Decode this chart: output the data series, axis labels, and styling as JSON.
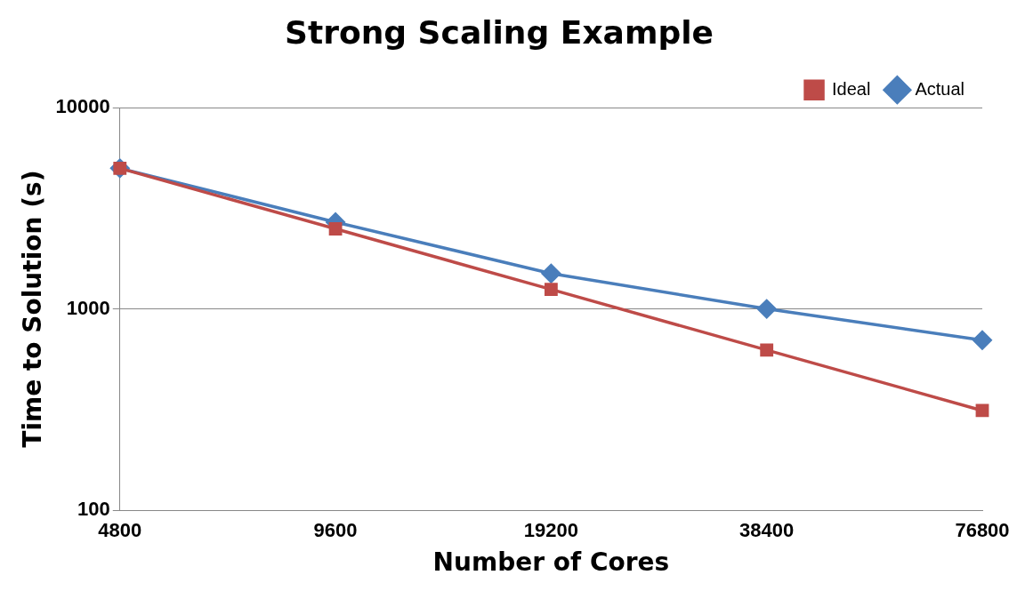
{
  "chart_data": {
    "type": "line",
    "title": "Strong Scaling Example",
    "xlabel": "Number of Cores",
    "ylabel": "Time to Solution (s)",
    "categories": [
      "4800",
      "9600",
      "19200",
      "38400",
      "76800"
    ],
    "series": [
      {
        "name": "Actual",
        "color": "#4a7ebb",
        "marker": "diamond",
        "values": [
          5000,
          2700,
          1500,
          1000,
          700
        ]
      },
      {
        "name": "Ideal",
        "color": "#be4b48",
        "marker": "square",
        "values": [
          5000,
          2500,
          1250,
          625,
          312.5
        ]
      }
    ],
    "log": "y",
    "ylim": [
      100,
      10000
    ],
    "yticks": [
      100,
      1000,
      10000
    ],
    "grid": "y",
    "legend": "top right"
  }
}
